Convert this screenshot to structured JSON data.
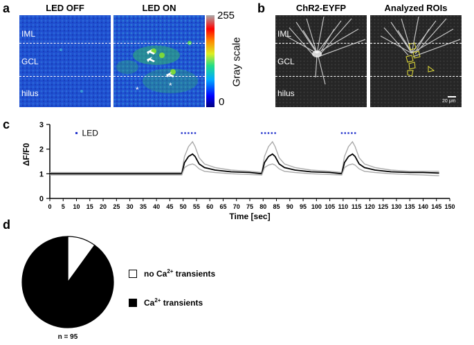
{
  "panels": {
    "a": {
      "letter": "a",
      "titles": [
        "LED OFF",
        "LED ON"
      ],
      "regions": [
        "IML",
        "GCL",
        "hilus"
      ],
      "colorbar": {
        "label": "Gray scale",
        "max_label": "255",
        "min_label": "0"
      }
    },
    "b": {
      "letter": "b",
      "titles": [
        "ChR2-EYFP",
        "Analyzed ROIs"
      ],
      "regions": [
        "IML",
        "GCL",
        "hilus"
      ],
      "scalebar": "20 μm"
    },
    "c": {
      "letter": "c"
    },
    "d": {
      "letter": "d",
      "legend": [
        {
          "prefix": "no Ca",
          "sup": "2+",
          "suffix": " transients",
          "color": "#ffffff"
        },
        {
          "prefix": "Ca",
          "sup": "2+",
          "suffix": " transients",
          "color": "#000000"
        }
      ],
      "n_label": "n = 95"
    }
  },
  "chart_data": [
    {
      "type": "line",
      "xlabel": "Time [sec]",
      "ylabel": "ΔF/F0",
      "xlim": [
        0,
        150
      ],
      "ylim": [
        0,
        3
      ],
      "xticks": [
        0,
        5,
        10,
        15,
        20,
        25,
        30,
        35,
        40,
        45,
        50,
        55,
        60,
        65,
        70,
        75,
        80,
        85,
        90,
        95,
        100,
        105,
        110,
        115,
        120,
        125,
        130,
        135,
        140,
        145,
        150
      ],
      "yticks": [
        0,
        1,
        2,
        3
      ],
      "legend": {
        "label": "LED",
        "position": "top-left"
      },
      "led_stimulation_windows": [
        [
          49.5,
          54.5
        ],
        [
          79.5,
          84.5
        ],
        [
          109.5,
          114.5
        ]
      ],
      "led_marker_y": 2.65,
      "series": [
        {
          "color": "#aaaaaa",
          "x": [
            0,
            10,
            20,
            30,
            40,
            48,
            49.5,
            50.5,
            52,
            53.5,
            54.5,
            56,
            58,
            62,
            68,
            75,
            79.5,
            80.5,
            82,
            83.5,
            84.5,
            86,
            88,
            92,
            98,
            105,
            109.5,
            110.5,
            112,
            113.5,
            114.5,
            116,
            118,
            122,
            128,
            135,
            140,
            146
          ],
          "y": [
            1.05,
            1.05,
            1.05,
            1.05,
            1.05,
            1.05,
            1.05,
            1.7,
            2.1,
            2.3,
            2.1,
            1.65,
            1.4,
            1.25,
            1.15,
            1.1,
            1.05,
            1.7,
            2.1,
            2.3,
            2.1,
            1.65,
            1.4,
            1.25,
            1.15,
            1.1,
            1.05,
            1.7,
            2.1,
            2.3,
            2.1,
            1.65,
            1.4,
            1.25,
            1.15,
            1.1,
            1.1,
            1.1
          ]
        },
        {
          "color": "#000000",
          "x": [
            0,
            10,
            20,
            30,
            40,
            48,
            49.5,
            50.5,
            52,
            53.5,
            54.5,
            56,
            58,
            62,
            68,
            75,
            79.5,
            80.5,
            82,
            83.5,
            84.5,
            86,
            88,
            92,
            98,
            105,
            109.5,
            110.5,
            112,
            113.5,
            114.5,
            116,
            118,
            122,
            128,
            135,
            140,
            146
          ],
          "y": [
            1.0,
            1.0,
            1.0,
            1.0,
            1.0,
            1.0,
            1.0,
            1.45,
            1.7,
            1.8,
            1.7,
            1.4,
            1.25,
            1.15,
            1.08,
            1.05,
            1.0,
            1.45,
            1.7,
            1.8,
            1.7,
            1.4,
            1.25,
            1.15,
            1.08,
            1.05,
            1.0,
            1.45,
            1.7,
            1.8,
            1.7,
            1.4,
            1.25,
            1.15,
            1.08,
            1.05,
            1.05,
            1.03
          ]
        },
        {
          "color": "#aaaaaa",
          "x": [
            0,
            10,
            20,
            30,
            40,
            48,
            49.5,
            50.5,
            52,
            53.5,
            54.5,
            56,
            58,
            62,
            68,
            75,
            79.5,
            80.5,
            82,
            83.5,
            84.5,
            86,
            88,
            92,
            98,
            105,
            109.5,
            110.5,
            112,
            113.5,
            114.5,
            116,
            118,
            122,
            128,
            135,
            140,
            146
          ],
          "y": [
            0.95,
            0.95,
            0.95,
            0.95,
            0.95,
            0.95,
            0.95,
            1.25,
            1.35,
            1.4,
            1.35,
            1.2,
            1.1,
            1.05,
            1.0,
            0.97,
            0.95,
            1.25,
            1.35,
            1.4,
            1.35,
            1.2,
            1.1,
            1.05,
            1.0,
            0.97,
            0.95,
            1.25,
            1.35,
            1.4,
            1.35,
            1.2,
            1.1,
            1.05,
            1.0,
            0.97,
            0.95,
            0.92
          ]
        }
      ]
    },
    {
      "type": "pie",
      "slices": [
        {
          "label": "no Ca2+ transients",
          "fraction": 0.1,
          "color": "#ffffff"
        },
        {
          "label": "Ca2+ transients",
          "fraction": 0.9,
          "color": "#000000"
        }
      ]
    }
  ]
}
